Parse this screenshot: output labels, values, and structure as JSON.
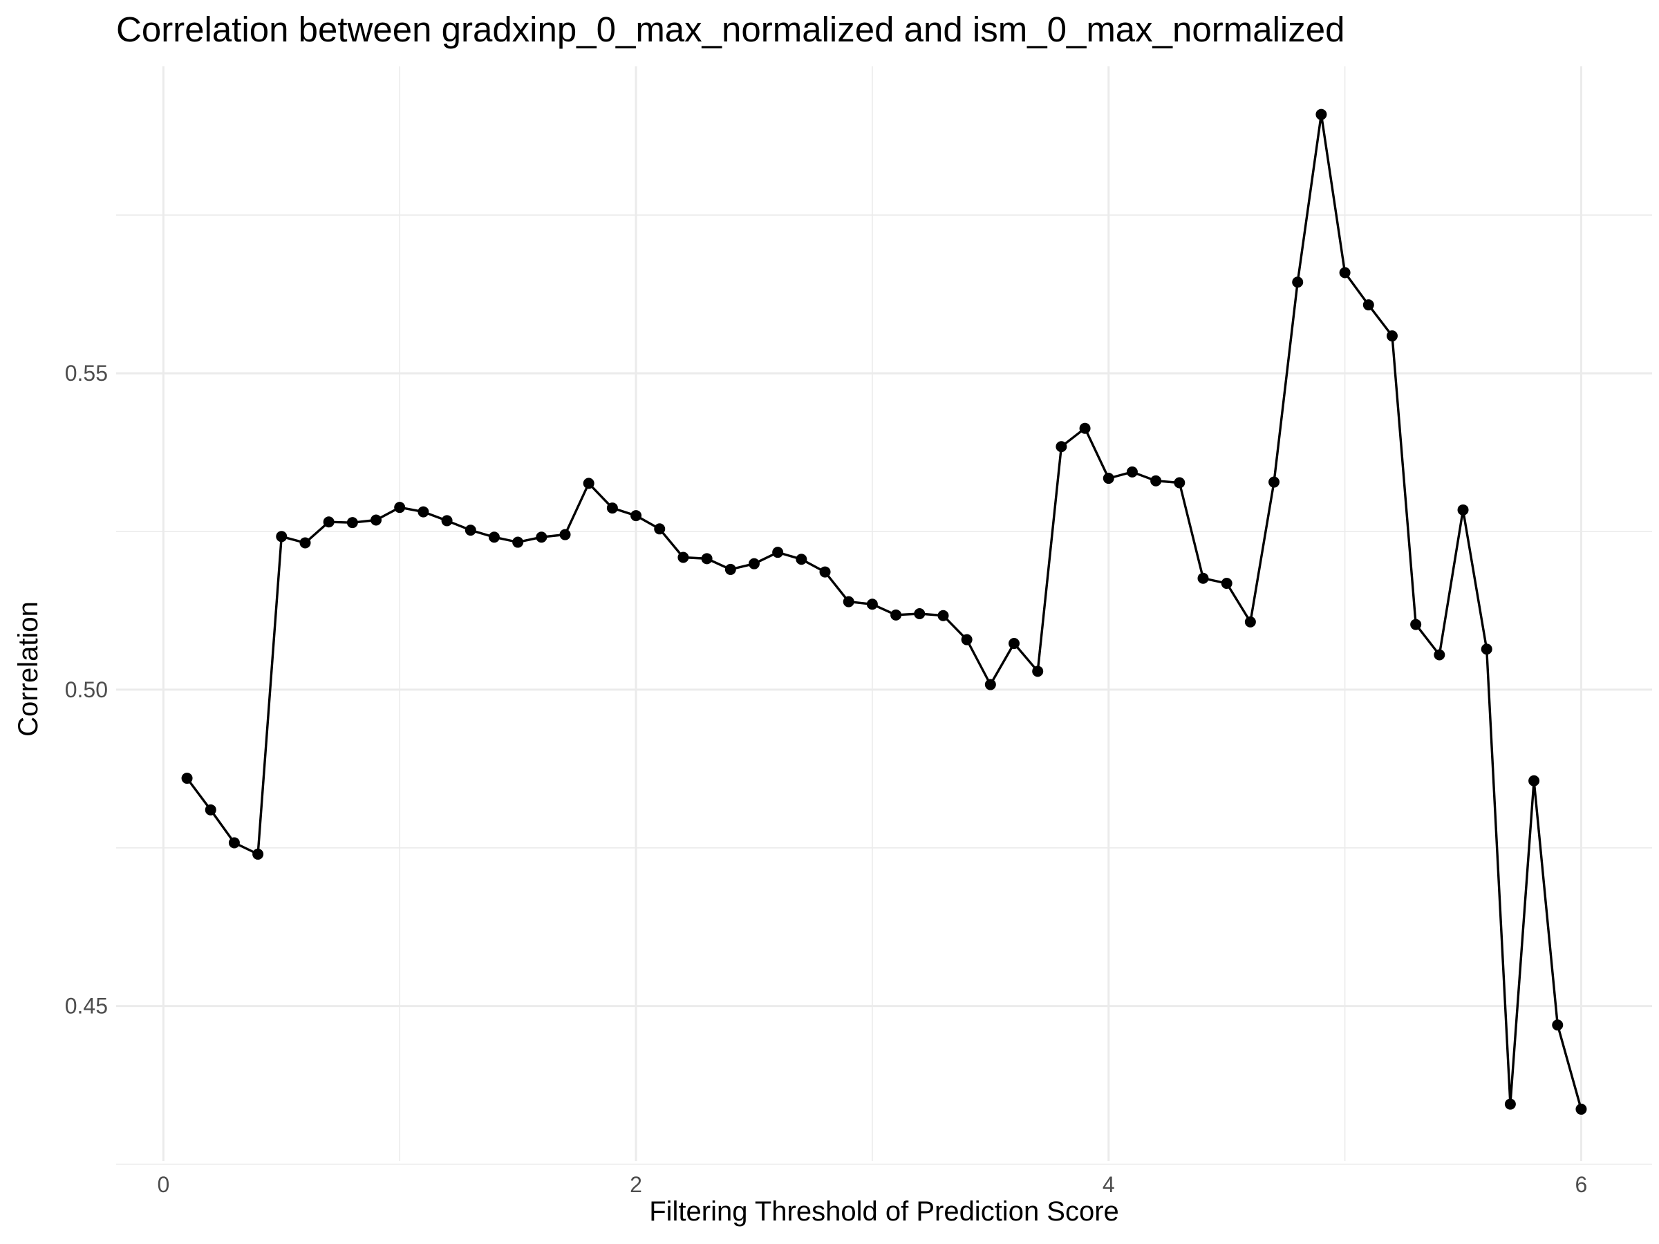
{
  "chart_data": {
    "type": "line",
    "title": "Correlation between gradxinp_0_max_normalized and ism_0_max_normalized",
    "xlabel": "Filtering Threshold of Prediction Score",
    "ylabel": "Correlation",
    "xlim": [
      -0.2,
      6.3
    ],
    "ylim": [
      0.4255,
      0.5985
    ],
    "x_major_ticks": [
      0,
      2,
      4,
      6
    ],
    "x_tick_labels": [
      "0",
      "2",
      "4",
      "6"
    ],
    "x_minor_ticks": [
      1,
      3,
      5
    ],
    "y_major_ticks": [
      0.45,
      0.5,
      0.55
    ],
    "y_tick_labels": [
      "0.45",
      "0.50",
      "0.55"
    ],
    "y_minor_ticks": [
      0.425,
      0.475,
      0.525,
      0.575
    ],
    "grid": true,
    "legend": "none",
    "series": [
      {
        "color": "#000000",
        "x": [
          0.1,
          0.2,
          0.3,
          0.4,
          0.5,
          0.6,
          0.7,
          0.8,
          0.9,
          1.0,
          1.1,
          1.2,
          1.3,
          1.4,
          1.5,
          1.6,
          1.7,
          1.8,
          1.9,
          2.0,
          2.1,
          2.2,
          2.3,
          2.4,
          2.5,
          2.6,
          2.7,
          2.8,
          2.9,
          3.0,
          3.1,
          3.2,
          3.3,
          3.4,
          3.5,
          3.6,
          3.7,
          3.8,
          3.9,
          4.0,
          4.1,
          4.2,
          4.3,
          4.4,
          4.5,
          4.6,
          4.7,
          4.8,
          4.9,
          5.0,
          5.1,
          5.2,
          5.3,
          5.4,
          5.5,
          5.6,
          5.7,
          5.8,
          5.9,
          6.0
        ],
        "values": [
          0.486,
          0.481,
          0.4758,
          0.474,
          0.5242,
          0.5232,
          0.5265,
          0.5264,
          0.5268,
          0.5288,
          0.5281,
          0.5267,
          0.5252,
          0.5241,
          0.5233,
          0.5241,
          0.5245,
          0.5326,
          0.5287,
          0.5275,
          0.5254,
          0.5209,
          0.5207,
          0.519,
          0.5199,
          0.5217,
          0.5206,
          0.5186,
          0.5139,
          0.5135,
          0.5118,
          0.512,
          0.5117,
          0.5079,
          0.5008,
          0.5073,
          0.5029,
          0.5384,
          0.5413,
          0.5334,
          0.5344,
          0.533,
          0.5327,
          0.5176,
          0.5168,
          0.5107,
          0.5328,
          0.5644,
          0.5909,
          0.5659,
          0.5608,
          0.5559,
          0.5103,
          0.5055,
          0.5284,
          0.5064,
          0.4345,
          0.4856,
          0.447,
          0.4337
        ]
      }
    ]
  }
}
